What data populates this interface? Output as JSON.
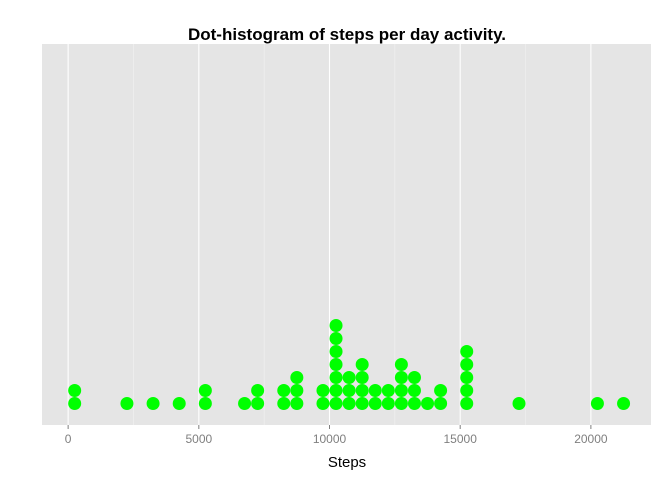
{
  "chart_data": {
    "type": "scatter",
    "subtype": "dot-histogram",
    "title": "Dot-histogram of steps per day activity.",
    "xlabel": "Steps",
    "ylabel": "",
    "xlim": [
      -1000,
      22300
    ],
    "x_ticks": [
      0,
      5000,
      10000,
      15000,
      20000
    ],
    "x_tick_labels": [
      "0",
      "5000",
      "10000",
      "15000",
      "20000"
    ],
    "grid": true,
    "legend": "none",
    "colors": {
      "dots": "#00ff00",
      "panel": "#e5e5e5",
      "grid": "#ffffff"
    },
    "bins": [
      {
        "x": 250,
        "count": 2
      },
      {
        "x": 2250,
        "count": 1
      },
      {
        "x": 3250,
        "count": 1
      },
      {
        "x": 4250,
        "count": 1
      },
      {
        "x": 5250,
        "count": 2
      },
      {
        "x": 6750,
        "count": 1
      },
      {
        "x": 7250,
        "count": 2
      },
      {
        "x": 8250,
        "count": 2
      },
      {
        "x": 8750,
        "count": 3
      },
      {
        "x": 9750,
        "count": 2
      },
      {
        "x": 10250,
        "count": 7
      },
      {
        "x": 10750,
        "count": 3
      },
      {
        "x": 11250,
        "count": 4
      },
      {
        "x": 11750,
        "count": 2
      },
      {
        "x": 12250,
        "count": 2
      },
      {
        "x": 12750,
        "count": 4
      },
      {
        "x": 13250,
        "count": 3
      },
      {
        "x": 13750,
        "count": 1
      },
      {
        "x": 14250,
        "count": 2
      },
      {
        "x": 15250,
        "count": 5
      },
      {
        "x": 17250,
        "count": 1
      },
      {
        "x": 20250,
        "count": 1
      },
      {
        "x": 21250,
        "count": 1
      }
    ]
  }
}
